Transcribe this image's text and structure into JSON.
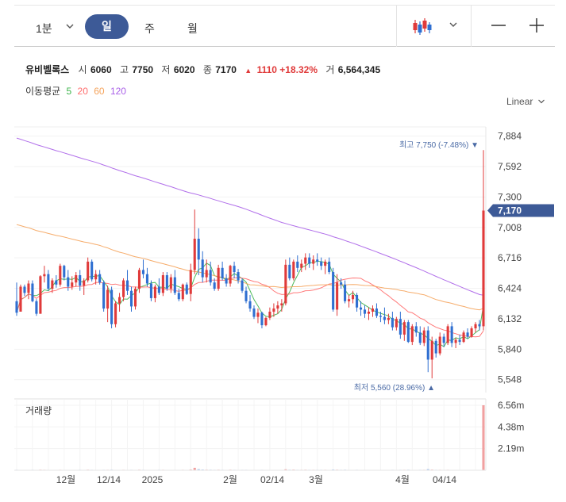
{
  "toolbar": {
    "interval": "1분",
    "tabs": [
      "일",
      "주",
      "월"
    ],
    "active_tab": "일",
    "chart_style_icon": "candlestick-icon",
    "zoom_out_icon": "minus-icon",
    "zoom_in_icon": "plus-icon"
  },
  "stock": {
    "name": "유비벨록스",
    "open_label": "시",
    "open": "6060",
    "high_label": "고",
    "high": "7750",
    "low_label": "저",
    "low": "6020",
    "close_label": "종",
    "close": "7170",
    "change_arrow": "▲",
    "change": "1110",
    "change_pct": "+18.32%",
    "volume_label": "거",
    "volume": "6,564,345"
  },
  "moving_average": {
    "title": "이동평균",
    "periods": [
      {
        "label": "5",
        "color": "#3cb44b"
      },
      {
        "label": "20",
        "color": "#ff6b6b"
      },
      {
        "label": "60",
        "color": "#f5a35b"
      },
      {
        "label": "120",
        "color": "#a95fe8"
      }
    ]
  },
  "scale_toggle": "Linear",
  "colors": {
    "up": "#e03a3a",
    "down": "#2f6fd1",
    "accent": "#3d5a97"
  },
  "price_axis": {
    "ticks": [
      "7,884",
      "7,592",
      "7,300",
      "7,008",
      "6,716",
      "6,424",
      "6,132",
      "5,840",
      "5,548"
    ],
    "current_price_tag": "7,170"
  },
  "annotations": {
    "max": "최고 7,750 (-7.48%) ▼",
    "min": "최저 5,560 (28.96%) ▲"
  },
  "volume_panel": {
    "title": "거래량",
    "ticks": [
      "6.56m",
      "4.38m",
      "2.19m"
    ]
  },
  "x_axis": {
    "labels": [
      "12월",
      "12/14",
      "2025",
      "2월",
      "02/14",
      "3월",
      "4월",
      "04/14"
    ]
  },
  "chart_data": {
    "type": "candlestick",
    "ylim": [
      5500,
      7950
    ],
    "volume_ylim": [
      0,
      7200000
    ],
    "candles": [
      [
        6300,
        6480,
        6160,
        6190
      ],
      [
        6200,
        6460,
        6200,
        6440
      ],
      [
        6440,
        6460,
        6350,
        6380
      ],
      [
        6380,
        6500,
        6320,
        6470
      ],
      [
        6470,
        6500,
        6290,
        6300
      ],
      [
        6300,
        6320,
        6160,
        6180
      ],
      [
        6180,
        6550,
        6180,
        6540
      ],
      [
        6540,
        6640,
        6480,
        6560
      ],
      [
        6560,
        6600,
        6400,
        6420
      ],
      [
        6420,
        6520,
        6380,
        6500
      ],
      [
        6500,
        6550,
        6430,
        6460
      ],
      [
        6460,
        6660,
        6440,
        6640
      ],
      [
        6640,
        6650,
        6500,
        6530
      ],
      [
        6530,
        6600,
        6400,
        6440
      ],
      [
        6440,
        6540,
        6410,
        6480
      ],
      [
        6480,
        6580,
        6440,
        6550
      ],
      [
        6550,
        6600,
        6400,
        6450
      ],
      [
        6450,
        6520,
        6360,
        6500
      ],
      [
        6500,
        6720,
        6480,
        6680
      ],
      [
        6680,
        6700,
        6490,
        6510
      ],
      [
        6510,
        6600,
        6460,
        6560
      ],
      [
        6560,
        6600,
        6460,
        6480
      ],
      [
        6480,
        6500,
        6200,
        6230
      ],
      [
        6230,
        6450,
        6100,
        6410
      ],
      [
        6410,
        6440,
        6040,
        6080
      ],
      [
        6080,
        6300,
        6050,
        6280
      ],
      [
        6280,
        6380,
        6200,
        6340
      ],
      [
        6340,
        6520,
        6300,
        6500
      ],
      [
        6500,
        6600,
        6360,
        6400
      ],
      [
        6400,
        6440,
        6200,
        6250
      ],
      [
        6250,
        6440,
        6220,
        6420
      ],
      [
        6420,
        6620,
        6380,
        6600
      ],
      [
        6600,
        6700,
        6520,
        6560
      ],
      [
        6560,
        6620,
        6440,
        6470
      ],
      [
        6470,
        6500,
        6300,
        6330
      ],
      [
        6330,
        6460,
        6290,
        6440
      ],
      [
        6440,
        6520,
        6360,
        6380
      ],
      [
        6380,
        6580,
        6350,
        6550
      ],
      [
        6550,
        6580,
        6400,
        6420
      ],
      [
        6420,
        6560,
        6380,
        6530
      ],
      [
        6530,
        6600,
        6360,
        6380
      ],
      [
        6380,
        6420,
        6300,
        6320
      ],
      [
        6320,
        6470,
        6300,
        6460
      ],
      [
        6460,
        6480,
        6360,
        6370
      ],
      [
        6370,
        6660,
        6300,
        6600
      ],
      [
        6600,
        7180,
        6560,
        6900
      ],
      [
        6900,
        7000,
        6550,
        6700
      ],
      [
        6700,
        6780,
        6480,
        6530
      ],
      [
        6530,
        6700,
        6480,
        6600
      ],
      [
        6600,
        6680,
        6450,
        6480
      ],
      [
        6480,
        6520,
        6400,
        6420
      ],
      [
        6420,
        6650,
        6400,
        6620
      ],
      [
        6620,
        6680,
        6500,
        6520
      ],
      [
        6520,
        6560,
        6440,
        6470
      ],
      [
        6470,
        6650,
        6440,
        6640
      ],
      [
        6640,
        6680,
        6520,
        6580
      ],
      [
        6580,
        6610,
        6470,
        6500
      ],
      [
        6500,
        6520,
        6380,
        6400
      ],
      [
        6400,
        6440,
        6280,
        6300
      ],
      [
        6300,
        6360,
        6200,
        6230
      ],
      [
        6230,
        6260,
        6130,
        6150
      ],
      [
        6150,
        6230,
        6090,
        6190
      ],
      [
        6190,
        6200,
        6040,
        6070
      ],
      [
        6070,
        6150,
        6060,
        6140
      ],
      [
        6140,
        6240,
        6120,
        6200
      ],
      [
        6200,
        6280,
        6150,
        6230
      ],
      [
        6230,
        6300,
        6180,
        6260
      ],
      [
        6260,
        6320,
        6200,
        6280
      ],
      [
        6280,
        6700,
        6260,
        6650
      ],
      [
        6650,
        6720,
        6500,
        6520
      ],
      [
        6520,
        6700,
        6500,
        6680
      ],
      [
        6680,
        6740,
        6580,
        6620
      ],
      [
        6620,
        6700,
        6580,
        6660
      ],
      [
        6660,
        6760,
        6600,
        6720
      ],
      [
        6720,
        6760,
        6620,
        6660
      ],
      [
        6660,
        6740,
        6600,
        6700
      ],
      [
        6700,
        6760,
        6640,
        6680
      ],
      [
        6680,
        6720,
        6600,
        6640
      ],
      [
        6640,
        6700,
        6560,
        6680
      ],
      [
        6680,
        6720,
        6560,
        6580
      ],
      [
        6580,
        6620,
        6200,
        6220
      ],
      [
        6220,
        6560,
        6160,
        6480
      ],
      [
        6480,
        6520,
        6420,
        6460
      ],
      [
        6460,
        6500,
        6280,
        6300
      ],
      [
        6300,
        6360,
        6240,
        6320
      ],
      [
        6320,
        6400,
        6280,
        6360
      ],
      [
        6360,
        6380,
        6200,
        6240
      ],
      [
        6240,
        6300,
        6160,
        6220
      ],
      [
        6220,
        6260,
        6140,
        6180
      ],
      [
        6180,
        6240,
        6120,
        6200
      ],
      [
        6200,
        6260,
        6150,
        6230
      ],
      [
        6230,
        6280,
        6140,
        6160
      ],
      [
        6160,
        6200,
        6100,
        6150
      ],
      [
        6150,
        6240,
        6080,
        6120
      ],
      [
        6120,
        6180,
        6080,
        6140
      ],
      [
        6140,
        6200,
        6020,
        6050
      ],
      [
        6050,
        6150,
        6020,
        6130
      ],
      [
        6130,
        6200,
        5940,
        5980
      ],
      [
        5980,
        6120,
        5920,
        6100
      ],
      [
        6100,
        6120,
        5900,
        5910
      ],
      [
        5910,
        6080,
        5880,
        6060
      ],
      [
        6060,
        6100,
        5960,
        6000
      ],
      [
        6000,
        6060,
        5880,
        5900
      ],
      [
        5900,
        6050,
        5870,
        6020
      ],
      [
        6020,
        6060,
        5620,
        5740
      ],
      [
        5740,
        5960,
        5560,
        5920
      ],
      [
        5920,
        5940,
        5760,
        5800
      ],
      [
        5800,
        6000,
        5780,
        5960
      ],
      [
        5960,
        5990,
        5860,
        5900
      ],
      [
        5900,
        6080,
        5880,
        6060
      ],
      [
        6060,
        6100,
        5860,
        5900
      ],
      [
        5900,
        5950,
        5850,
        5930
      ],
      [
        5930,
        5980,
        5880,
        5910
      ],
      [
        5910,
        6020,
        5900,
        6000
      ],
      [
        6000,
        6040,
        5940,
        5960
      ],
      [
        5960,
        6060,
        5950,
        6040
      ],
      [
        6040,
        6100,
        6000,
        6080
      ],
      [
        6080,
        6120,
        6020,
        6060
      ],
      [
        6060,
        7750,
        6020,
        7170
      ]
    ],
    "volumes_millions": [
      0.05,
      0.04,
      0.03,
      0.04,
      0.05,
      0.04,
      0.06,
      0.05,
      0.04,
      0.03,
      0.04,
      0.05,
      0.04,
      0.03,
      0.04,
      0.04,
      0.05,
      0.04,
      0.06,
      0.05,
      0.04,
      0.03,
      0.05,
      0.05,
      0.06,
      0.04,
      0.04,
      0.05,
      0.04,
      0.05,
      0.04,
      0.06,
      0.05,
      0.04,
      0.04,
      0.04,
      0.05,
      0.05,
      0.04,
      0.04,
      0.04,
      0.04,
      0.05,
      0.04,
      0.08,
      0.25,
      0.12,
      0.08,
      0.06,
      0.06,
      0.05,
      0.06,
      0.05,
      0.04,
      0.06,
      0.05,
      0.04,
      0.05,
      0.05,
      0.04,
      0.04,
      0.04,
      0.05,
      0.04,
      0.04,
      0.04,
      0.04,
      0.04,
      0.1,
      0.06,
      0.07,
      0.05,
      0.05,
      0.06,
      0.05,
      0.05,
      0.05,
      0.05,
      0.05,
      0.04,
      0.08,
      0.06,
      0.05,
      0.06,
      0.04,
      0.04,
      0.05,
      0.04,
      0.04,
      0.04,
      0.04,
      0.04,
      0.04,
      0.04,
      0.04,
      0.05,
      0.04,
      0.05,
      0.05,
      0.06,
      0.04,
      0.04,
      0.05,
      0.05,
      0.12,
      0.07,
      0.05,
      0.05,
      0.04,
      0.05,
      0.04,
      0.04,
      0.04,
      0.04,
      0.04,
      0.04,
      0.04,
      0.04,
      6.56
    ]
  }
}
